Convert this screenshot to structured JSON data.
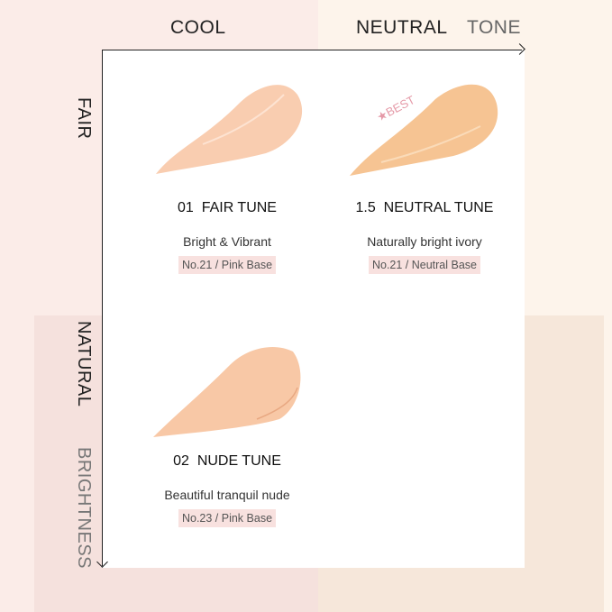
{
  "axes": {
    "x_left": "COOL",
    "x_mid": "NEUTRAL",
    "x_title": "TONE",
    "y_top": "FAIR",
    "y_mid": "NATURAL",
    "y_title": "BRIGHTNESS"
  },
  "products": [
    {
      "number": "01",
      "name": "FAIR TUNE",
      "description": "Bright & Vibrant",
      "tag": "No.21 / Pink Base",
      "color": "#f9cdb0"
    },
    {
      "number": "1.5",
      "name": "NEUTRAL TUNE",
      "description": "Naturally bright ivory",
      "tag": "No.21 / Neutral Base",
      "color": "#f6c493",
      "badge": "★BEST"
    },
    {
      "number": "02",
      "name": "NUDE TUNE",
      "description": "Beautiful tranquil nude",
      "tag": "No.23 / Pink Base",
      "color": "#f8c8a6"
    }
  ],
  "colors": {
    "best_badge": "#e59aa8"
  }
}
